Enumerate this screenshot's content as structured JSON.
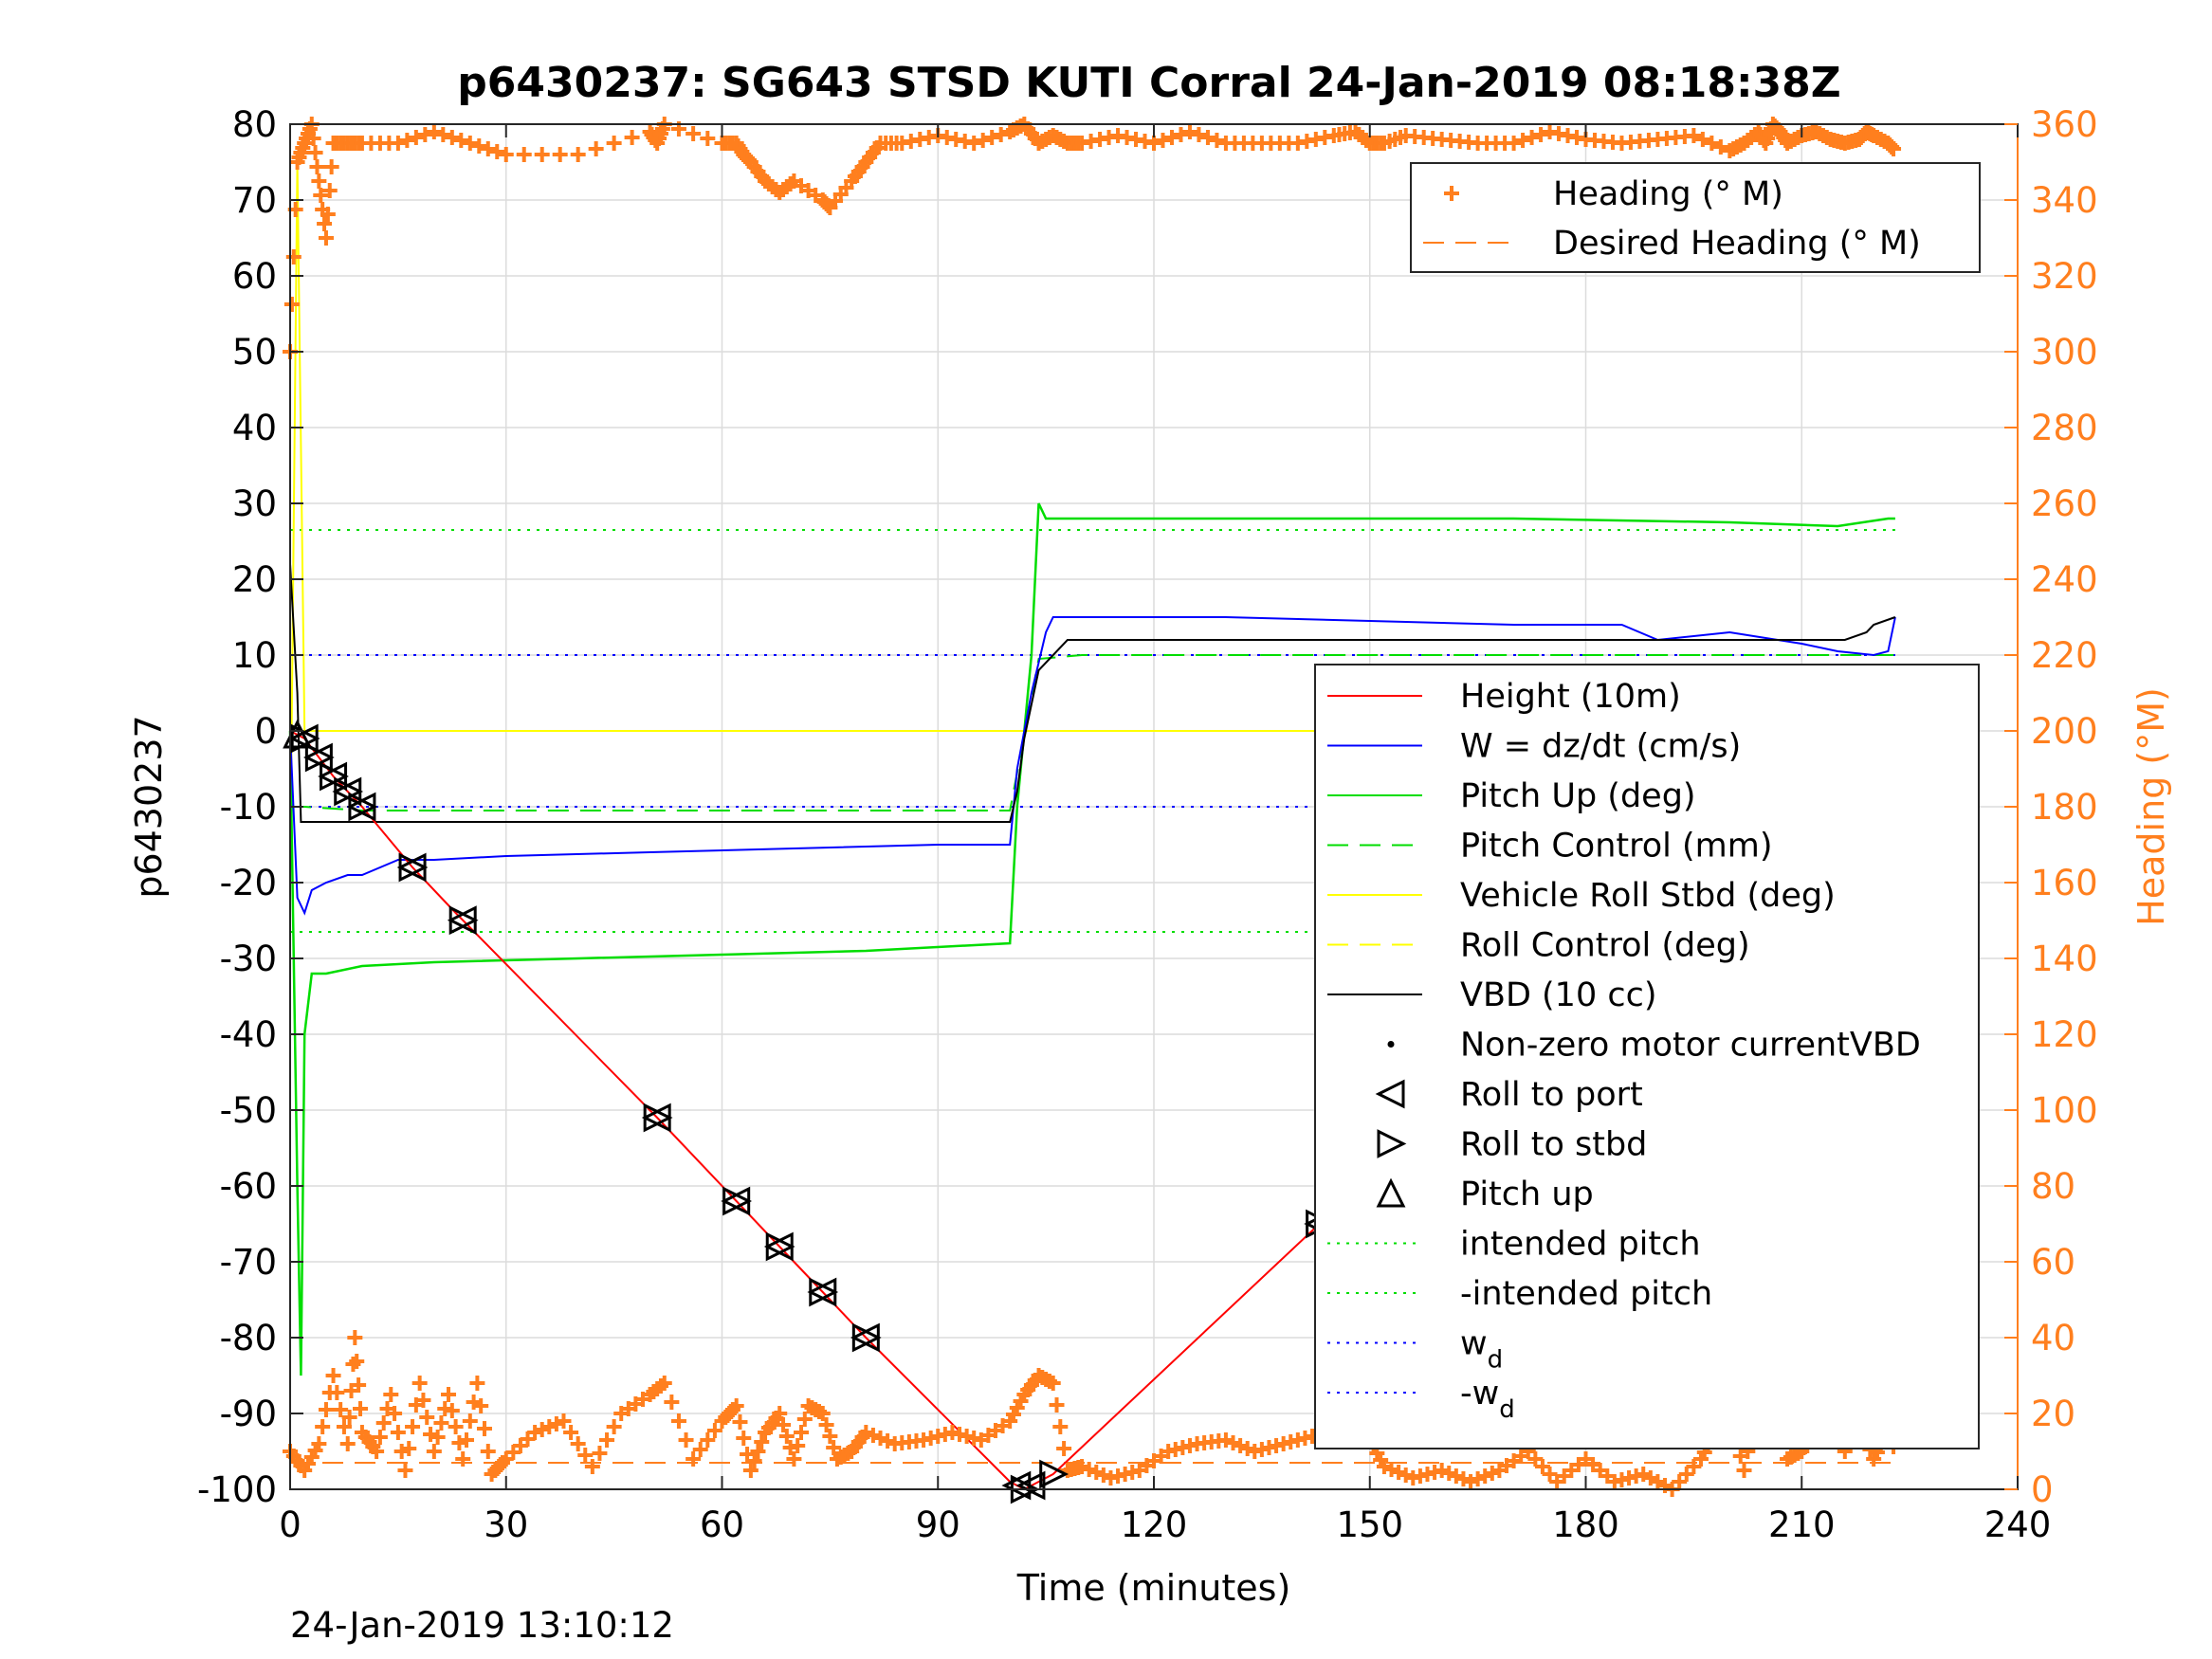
{
  "chart_data": {
    "type": "line",
    "title": "p6430237: SG643 STSD KUTI Corral 24-Jan-2019 08:18:38Z",
    "xlabel": "Time (minutes)",
    "ylabel": "p6430237",
    "y2label": "Heading (°M)",
    "footer": "24-Jan-2019 13:10:12",
    "xlim": [
      0,
      240
    ],
    "ylim": [
      -100,
      80
    ],
    "y2lim": [
      0,
      360
    ],
    "xticks": [
      "0",
      "30",
      "60",
      "90",
      "120",
      "150",
      "180",
      "210",
      "240"
    ],
    "yticks": [
      "80",
      "70",
      "60",
      "50",
      "40",
      "30",
      "20",
      "10",
      "0",
      "-10",
      "-20",
      "-30",
      "-40",
      "-50",
      "-60",
      "-70",
      "-80",
      "-90",
      "-100"
    ],
    "y2ticks": [
      "360",
      "340",
      "320",
      "300",
      "280",
      "260",
      "240",
      "220",
      "200",
      "180",
      "160",
      "140",
      "120",
      "100",
      "80",
      "60",
      "40",
      "20",
      "0"
    ],
    "grid": true,
    "legend_heading": {
      "placement": "top-right",
      "entries": [
        "Heading (° M)",
        "Desired Heading (° M)"
      ]
    },
    "legend_main": {
      "placement": "right",
      "entries": [
        "Height (10m)",
        "W = dz/dt (cm/s)",
        "Pitch Up (deg)",
        "Pitch Control (mm)",
        "Vehicle Roll Stbd (deg)",
        "Roll Control (deg)",
        "VBD (10 cc)",
        "Non-zero motor currentVBD",
        "Roll to port",
        "Roll to stbd",
        "Pitch up",
        "intended pitch",
        "-intended pitch",
        "w",
        "-w"
      ],
      "subscript": "d"
    },
    "colors": {
      "height": "#FF0000",
      "w": "#0000FF",
      "pitch": "#00DD00",
      "roll": "#FFFF00",
      "vbd": "#000000",
      "heading": "#FF7F1E"
    },
    "series": [
      {
        "name": "Height (10m)",
        "x": [
          0,
          2,
          6,
          10,
          17,
          23,
          51,
          62,
          68,
          74,
          80,
          100,
          102,
          104,
          106,
          143,
          150,
          198,
          201,
          206,
          214,
          219,
          223
        ],
        "y": [
          0,
          -1,
          -6,
          -10,
          -18,
          -24,
          -51,
          -62,
          -68,
          -74,
          -80,
          -99,
          -100,
          -99,
          -98,
          -65,
          -60,
          -18,
          -16,
          -12,
          -7,
          -3,
          0
        ]
      },
      {
        "name": "W = dz/dt (cm/s)",
        "x": [
          0,
          1,
          2,
          3,
          5,
          8,
          10,
          15,
          20,
          30,
          50,
          70,
          90,
          100,
          101,
          103,
          105,
          106,
          110,
          130,
          150,
          170,
          185,
          190,
          200,
          210,
          215,
          220,
          222,
          223
        ],
        "y": [
          0,
          -22,
          -24,
          -21,
          -20,
          -19,
          -19,
          -17,
          -17,
          -16.5,
          -16,
          -15.5,
          -15,
          -15,
          -5,
          5,
          13,
          15,
          15,
          15,
          14.5,
          14,
          14,
          12,
          13,
          11.5,
          10.5,
          10,
          10.5,
          15
        ]
      },
      {
        "name": "Pitch Up (deg)",
        "x": [
          0,
          1,
          1.5,
          2,
          3,
          5,
          10,
          20,
          40,
          60,
          80,
          100,
          101,
          103,
          104,
          105,
          110,
          140,
          170,
          200,
          215,
          222,
          223
        ],
        "y": [
          0,
          -60,
          -85,
          -40,
          -32,
          -32,
          -31,
          -30.5,
          -30,
          -29.5,
          -29,
          -28,
          -10,
          10,
          30,
          28,
          28,
          28,
          28,
          27.5,
          27,
          28,
          28
        ]
      },
      {
        "name": "Pitch Control (mm)",
        "x": [
          0,
          2,
          10,
          100,
          104,
          110,
          223
        ],
        "y": [
          -10,
          -10,
          -10.5,
          -10.5,
          9.5,
          10,
          10
        ]
      },
      {
        "name": "Vehicle Roll Stbd (deg)",
        "x": [
          0,
          1,
          2,
          5,
          10,
          15,
          20,
          50,
          60,
          70,
          80,
          90,
          100,
          103,
          110,
          140,
          160,
          200,
          210,
          220,
          223
        ],
        "y": [
          -20,
          75,
          0,
          0,
          0,
          0,
          0,
          0,
          0,
          0,
          0,
          0,
          0,
          0,
          0,
          0,
          0,
          0,
          0,
          0,
          0
        ]
      },
      {
        "name": "VBD (10 cc)",
        "x": [
          0,
          1,
          1.5,
          2,
          100,
          101,
          102,
          104,
          108,
          140,
          180,
          210,
          216,
          219,
          220,
          223
        ],
        "y": [
          22,
          5,
          -12,
          -12,
          -12,
          -8,
          -1,
          8,
          12,
          12,
          12,
          12,
          12,
          13,
          14,
          15
        ]
      },
      {
        "name": "intended pitch",
        "x": [
          0,
          223
        ],
        "y": [
          26.5,
          26.5
        ]
      },
      {
        "name": "-intended pitch",
        "x": [
          0,
          223
        ],
        "y": [
          -26.5,
          -26.5
        ]
      },
      {
        "name": "w_d",
        "x": [
          0,
          223
        ],
        "y": [
          10,
          10
        ]
      },
      {
        "name": "-w_d",
        "x": [
          0,
          223
        ],
        "y": [
          -10,
          -10
        ]
      },
      {
        "name": "Heading (° M)",
        "axis": "right",
        "x": [
          0,
          1,
          2,
          3,
          4,
          5,
          6,
          8,
          10,
          15,
          20,
          25,
          30,
          40,
          50,
          51,
          52,
          60,
          62,
          63,
          64,
          66,
          68,
          70,
          74,
          75,
          78,
          80,
          82,
          85,
          90,
          95,
          100,
          102,
          104,
          106,
          108,
          110,
          115,
          120,
          125,
          130,
          135,
          140,
          145,
          148,
          150,
          152,
          155,
          160,
          165,
          170,
          175,
          180,
          185,
          190,
          195,
          200,
          202,
          204,
          205,
          206,
          207,
          208,
          210,
          212,
          214,
          216,
          218,
          219,
          220,
          222,
          223
        ],
        "y": [
          300,
          350,
          355,
          360,
          345,
          330,
          355,
          355,
          355,
          355,
          358,
          355,
          352,
          352,
          358,
          355,
          360,
          355,
          355,
          352,
          350,
          345,
          342,
          345,
          340,
          338,
          345,
          350,
          355,
          355,
          357,
          355,
          358,
          360,
          355,
          357,
          355,
          355,
          357,
          355,
          358,
          355,
          355,
          355,
          357,
          358,
          355,
          355,
          357,
          356,
          355,
          355,
          358,
          356,
          355,
          356,
          357,
          353,
          355,
          358,
          355,
          360,
          358,
          355,
          357,
          358,
          356,
          355,
          356,
          358,
          357,
          355,
          353
        ]
      },
      {
        "name": "Desired Heading (° M)",
        "axis": "right",
        "x": [
          0,
          223
        ],
        "y": [
          7,
          7
        ]
      }
    ],
    "heading_bottom": {
      "x": [
        0,
        2,
        4,
        6,
        8,
        9,
        10,
        12,
        14,
        16,
        18,
        20,
        22,
        24,
        26,
        28,
        30,
        34,
        38,
        42,
        46,
        50,
        52,
        56,
        60,
        62,
        64,
        66,
        68,
        70,
        72,
        74,
        76,
        78,
        80,
        84,
        88,
        92,
        96,
        100,
        102,
        104,
        106,
        108,
        110,
        114,
        118,
        122,
        126,
        130,
        134,
        138,
        142,
        146,
        150,
        152,
        156,
        160,
        164,
        168,
        172,
        176,
        180,
        184,
        188,
        192,
        196,
        198,
        200,
        202,
        204,
        205,
        206,
        208,
        210,
        212,
        214,
        216,
        218,
        220,
        222,
        223
      ],
      "y": [
        10,
        5,
        12,
        30,
        12,
        40,
        15,
        10,
        25,
        5,
        28,
        10,
        25,
        8,
        28,
        4,
        8,
        15,
        18,
        6,
        20,
        25,
        28,
        8,
        18,
        22,
        5,
        15,
        20,
        8,
        22,
        20,
        8,
        10,
        15,
        12,
        13,
        15,
        13,
        18,
        25,
        30,
        28,
        5,
        6,
        3,
        5,
        10,
        12,
        13,
        10,
        12,
        14,
        15,
        13,
        6,
        3,
        5,
        2,
        5,
        10,
        2,
        8,
        2,
        4,
        0,
        8,
        15,
        20,
        5,
        25,
        45,
        30,
        8,
        10,
        15,
        20,
        10,
        18,
        8,
        15,
        10
      ]
    },
    "roll_to_port_markers_x": [
      2,
      4,
      6,
      8,
      10,
      17,
      24,
      51,
      62,
      68,
      74,
      80,
      101,
      103,
      143,
      150,
      198,
      201,
      206,
      214,
      219
    ],
    "roll_to_stbd_markers_x": [
      2,
      4,
      6,
      8,
      10,
      17,
      24,
      51,
      62,
      68,
      74,
      80,
      102,
      106,
      143,
      150,
      198,
      201,
      206,
      214,
      219,
      223
    ],
    "pitch_up_markers_x": [
      1
    ]
  }
}
